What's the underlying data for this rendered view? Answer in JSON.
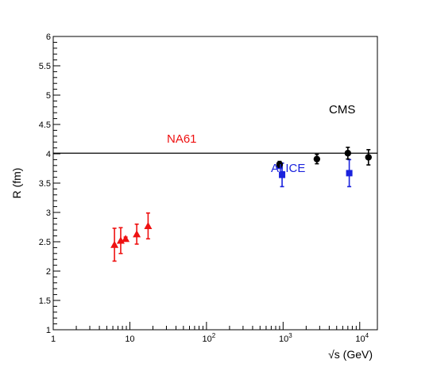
{
  "chart_data": {
    "type": "scatter",
    "x_scale": "log",
    "xlim": [
      1,
      17000
    ],
    "ylim": [
      1,
      6
    ],
    "xlabel_root": "√s",
    "xlabel_unit": " (GeV)",
    "ylabel": "R (fm)",
    "x_ticks": [
      {
        "value": 1,
        "label": "1",
        "sup": ""
      },
      {
        "value": 10,
        "label": "10",
        "sup": ""
      },
      {
        "value": 100,
        "label": "10",
        "sup": "2"
      },
      {
        "value": 1000,
        "label": "10",
        "sup": "3"
      },
      {
        "value": 10000,
        "label": "10",
        "sup": "4"
      }
    ],
    "y_ticks": [
      {
        "value": 1,
        "label": "1"
      },
      {
        "value": 1.5,
        "label": "1.5"
      },
      {
        "value": 2,
        "label": "2"
      },
      {
        "value": 2.5,
        "label": "2.5"
      },
      {
        "value": 3,
        "label": "3"
      },
      {
        "value": 3.5,
        "label": "3.5"
      },
      {
        "value": 4,
        "label": "4"
      },
      {
        "value": 4.5,
        "label": "4.5"
      },
      {
        "value": 5,
        "label": "5"
      },
      {
        "value": 5.5,
        "label": "5.5"
      },
      {
        "value": 6,
        "label": "6"
      }
    ],
    "reference_line": {
      "y": 4.01,
      "color": "#000000"
    },
    "series": [
      {
        "name": "NA61",
        "marker": "triangle",
        "color": "#ee1111",
        "points": [
          {
            "x": 6.3,
            "y": 2.45,
            "err": 0.28
          },
          {
            "x": 7.6,
            "y": 2.52,
            "err": 0.22
          },
          {
            "x": 8.8,
            "y": 2.55,
            "err": 0.03
          },
          {
            "x": 12.3,
            "y": 2.63,
            "err": 0.17
          },
          {
            "x": 17.3,
            "y": 2.77,
            "err": 0.22
          }
        ]
      },
      {
        "name": "ALICE",
        "marker": "square",
        "color": "#1a22dd",
        "points": [
          {
            "x": 900,
            "y": 3.8,
            "err": 0.05
          },
          {
            "x": 970,
            "y": 3.64,
            "err": 0.2
          },
          {
            "x": 7300,
            "y": 3.67,
            "err": 0.23
          }
        ]
      },
      {
        "name": "CMS",
        "marker": "circle",
        "color": "#000000",
        "points": [
          {
            "x": 900,
            "y": 3.82,
            "err": 0.05
          },
          {
            "x": 2760,
            "y": 3.91,
            "err": 0.08
          },
          {
            "x": 7000,
            "y": 4.01,
            "err": 0.1
          },
          {
            "x": 13000,
            "y": 3.94,
            "err": 0.13
          }
        ]
      }
    ]
  }
}
